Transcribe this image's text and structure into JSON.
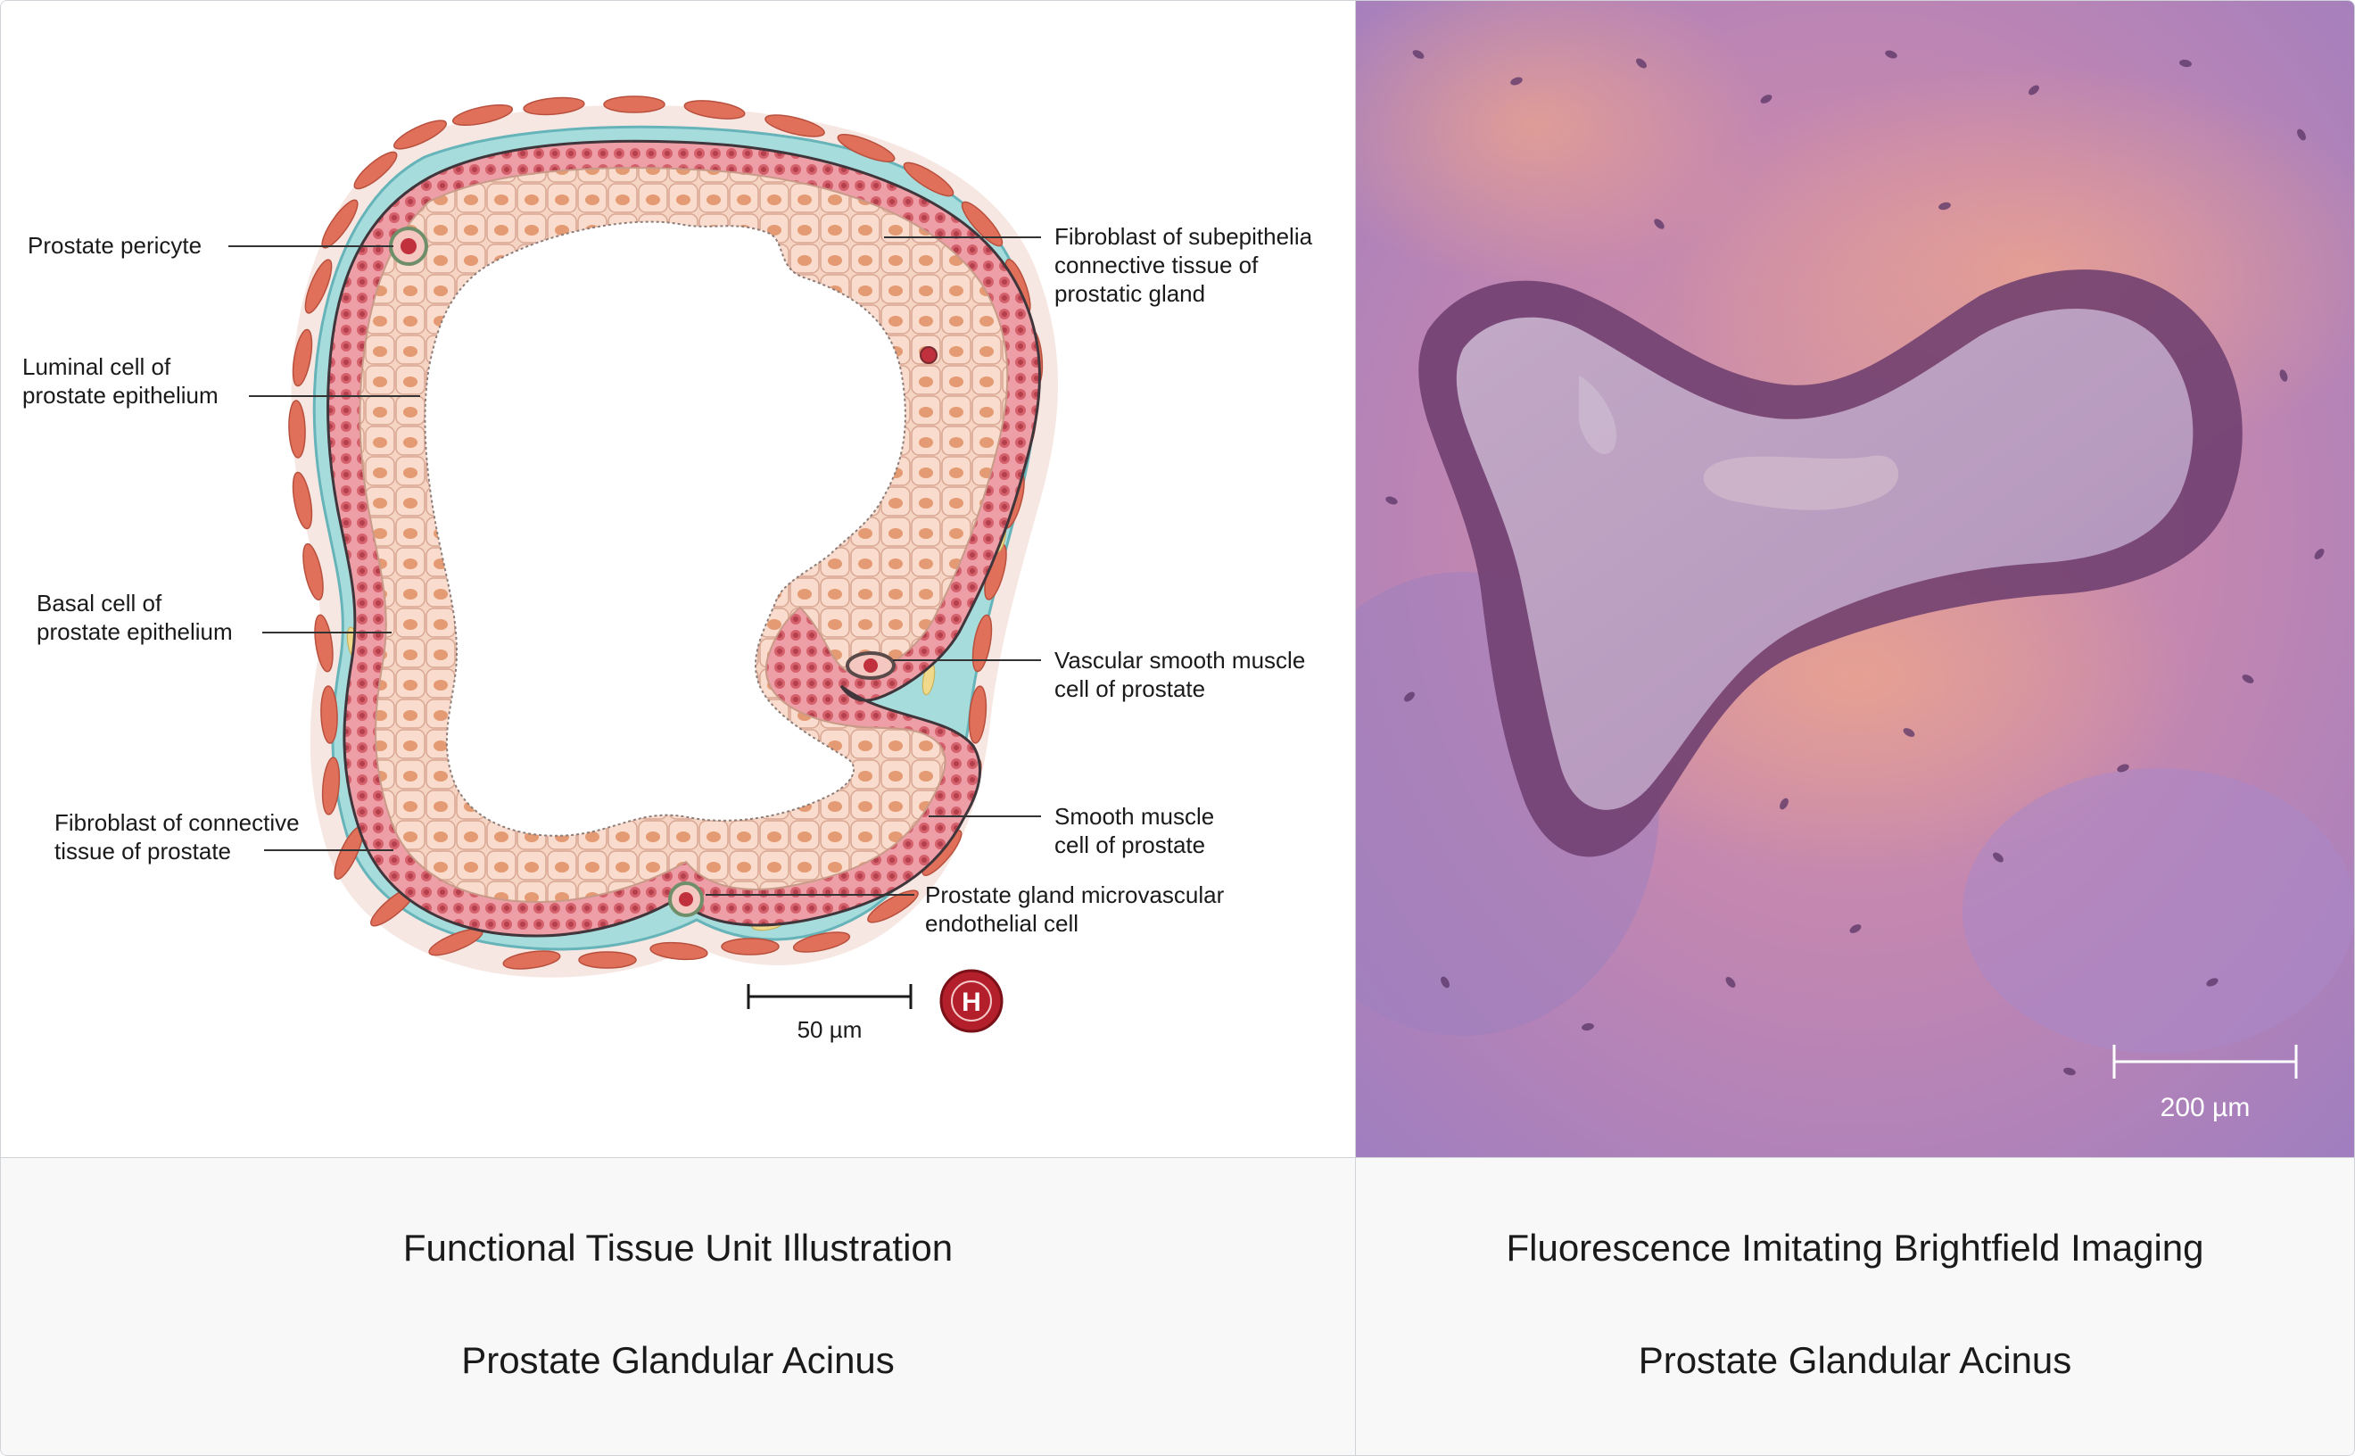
{
  "panels": {
    "illustration": {
      "labels": {
        "pericyte": [
          "Prostate pericyte"
        ],
        "luminal": [
          "Luminal cell of",
          "prostate epithelium"
        ],
        "basal": [
          "Basal cell of",
          "prostate epithelium"
        ],
        "fibroblast_connective": [
          "Fibroblast of connective",
          "tissue of prostate"
        ],
        "fibroblast_subepithelia": [
          "Fibroblast of subepithelia",
          "connective tissue of",
          "prostatic gland"
        ],
        "vascular_smooth_muscle": [
          "Vascular smooth muscle",
          "cell of prostate"
        ],
        "smooth_muscle": [
          "Smooth muscle",
          "cell of prostate"
        ],
        "microvascular": [
          "Prostate gland microvascular",
          "endothelial cell"
        ]
      },
      "scale_bar": "50 µm",
      "badge_letter": "H",
      "colors": {
        "lumen_cells": "#f7d9cc",
        "nuclei": "#e0916a",
        "basal_layer": "#e8838f",
        "stroma": "#8fd0d3",
        "smooth_muscle": "#e0705a",
        "badge": "#b3202b"
      }
    },
    "imaging": {
      "scale_bar": "200 µm",
      "colors": {
        "tissue": "#b37ab0",
        "lumen": "#b79bbd",
        "nuclei": "#5a3566"
      }
    }
  },
  "captions": {
    "left": {
      "title": "Functional Tissue Unit Illustration",
      "subtitle": "Prostate Glandular Acinus"
    },
    "right": {
      "title": "Fluorescence Imitating Brightfield Imaging",
      "subtitle": "Prostate Glandular Acinus"
    }
  }
}
